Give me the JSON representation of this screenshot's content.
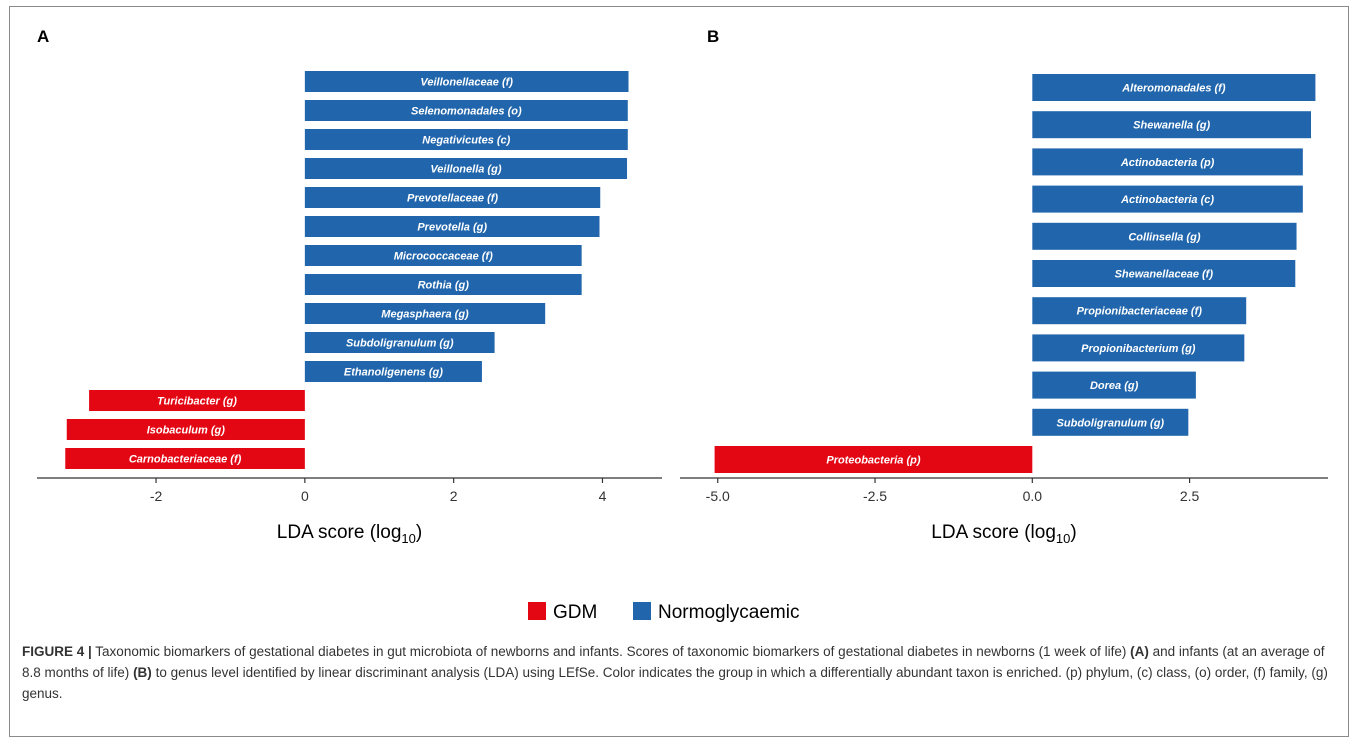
{
  "colors": {
    "gdm": "#e30613",
    "normo": "#2166ac"
  },
  "legend": {
    "items": [
      {
        "label": "GDM",
        "group": "gdm"
      },
      {
        "label": "Normoglycaemic",
        "group": "normo"
      }
    ]
  },
  "chart_data": [
    {
      "type": "bar",
      "orientation": "horizontal",
      "panel": "A",
      "xlabel_main": "LDA score (log",
      "xlabel_sub": "10",
      "xlabel_end": ")",
      "xlim": [
        -3.6,
        4.8
      ],
      "xticks": [
        -2,
        0,
        2,
        4
      ],
      "xtick_labels": [
        "-2",
        "0",
        "2",
        "4"
      ],
      "bars": [
        {
          "label": "Veillonellaceae (f)",
          "value": 4.35,
          "group": "normo"
        },
        {
          "label": "Selenomonadales (o)",
          "value": 4.34,
          "group": "normo"
        },
        {
          "label": "Negativicutes (c)",
          "value": 4.34,
          "group": "normo"
        },
        {
          "label": "Veillonella (g)",
          "value": 4.33,
          "group": "normo"
        },
        {
          "label": "Prevotellaceae (f)",
          "value": 3.97,
          "group": "normo"
        },
        {
          "label": "Prevotella (g)",
          "value": 3.96,
          "group": "normo"
        },
        {
          "label": "Micrococcaceae (f)",
          "value": 3.72,
          "group": "normo"
        },
        {
          "label": "Rothia (g)",
          "value": 3.72,
          "group": "normo"
        },
        {
          "label": "Megasphaera (g)",
          "value": 3.23,
          "group": "normo"
        },
        {
          "label": "Subdoligranulum (g)",
          "value": 2.55,
          "group": "normo"
        },
        {
          "label": "Ethanoligenens (g)",
          "value": 2.38,
          "group": "normo"
        },
        {
          "label": "Turicibacter (g)",
          "value": -2.9,
          "group": "gdm"
        },
        {
          "label": "Isobaculum (g)",
          "value": -3.2,
          "group": "gdm"
        },
        {
          "label": "Carnobacteriaceae (f)",
          "value": -3.22,
          "group": "gdm"
        }
      ]
    },
    {
      "type": "bar",
      "orientation": "horizontal",
      "panel": "B",
      "xlabel_main": "LDA score (log",
      "xlabel_sub": "10",
      "xlabel_end": ")",
      "xlim": [
        -5.6,
        4.7
      ],
      "xticks": [
        -5.0,
        -2.5,
        0.0,
        2.5
      ],
      "xtick_labels": [
        "-5.0",
        "-2.5",
        "0.0",
        "2.5"
      ],
      "bars": [
        {
          "label": "Alteromonadales (f)",
          "value": 4.5,
          "group": "normo"
        },
        {
          "label": "Shewanella (g)",
          "value": 4.43,
          "group": "normo"
        },
        {
          "label": "Actinobacteria (p)",
          "value": 4.3,
          "group": "normo"
        },
        {
          "label": "Actinobacteria (c)",
          "value": 4.3,
          "group": "normo"
        },
        {
          "label": "Collinsella (g)",
          "value": 4.2,
          "group": "normo"
        },
        {
          "label": "Shewanellaceae (f)",
          "value": 4.18,
          "group": "normo"
        },
        {
          "label": "Propionibacteriaceae (f)",
          "value": 3.4,
          "group": "normo"
        },
        {
          "label": "Propionibacterium (g)",
          "value": 3.37,
          "group": "normo"
        },
        {
          "label": "Dorea (g)",
          "value": 2.6,
          "group": "normo"
        },
        {
          "label": "Subdoligranulum (g)",
          "value": 2.48,
          "group": "normo"
        },
        {
          "label": "Proteobacteria (p)",
          "value": -5.05,
          "group": "gdm"
        }
      ]
    }
  ],
  "caption": {
    "fig_label": "FIGURE 4 |",
    "parts": [
      {
        "t": " Taxonomic biomarkers of gestational diabetes in gut microbiota of newborns and infants. Scores of taxonomic biomarkers of gestational diabetes in newborns (1 week of life) ",
        "b": false
      },
      {
        "t": "(A)",
        "b": true
      },
      {
        "t": " and infants (at an average of 8.8 months of life) ",
        "b": false
      },
      {
        "t": "(B)",
        "b": true
      },
      {
        "t": " to genus level identified by linear discriminant analysis (LDA) using LEfSe. Color indicates the group in which a differentially abundant taxon is enriched. (p) phylum, (c) class, (o) order, (f) family, (g) genus.",
        "b": false
      }
    ]
  }
}
